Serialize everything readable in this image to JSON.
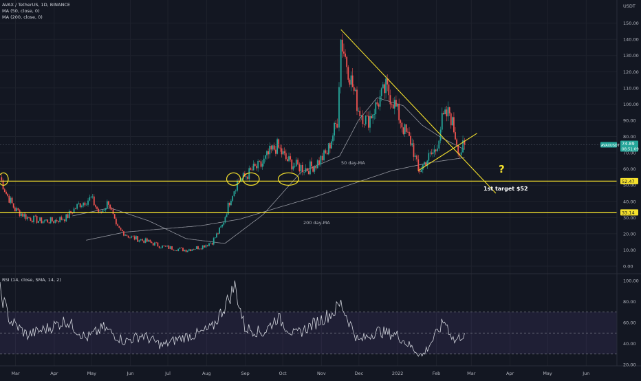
{
  "header": {
    "symbol_line": "AVAX / TetherUS, 1D, BINANCE",
    "ma50_label": "MA (50, close, 0)",
    "ma200_label": "MA (200, close, 0)",
    "rsi_label": "RSI (14, close, SMA, 14, 2)"
  },
  "colors": {
    "background": "#131722",
    "grid": "#1e222d",
    "up": "#26a69a",
    "down": "#ef5350",
    "ma": "#9598a1",
    "drawing": "#f5e12d",
    "rsi_line": "#d1d4dc",
    "rsi_band": "#7e57c2",
    "axis_text": "#b2b5be"
  },
  "price_axis": {
    "unit": "USDT",
    "ticks": [
      "150.00",
      "140.00",
      "130.00",
      "120.00",
      "110.00",
      "100.00",
      "90.00",
      "80.00",
      "70.00",
      "60.00",
      "50.00",
      "40.00",
      "30.00",
      "20.00",
      "10.00",
      "0.00"
    ]
  },
  "rsi_axis": {
    "ticks": [
      "100.00",
      "80.00",
      "60.00",
      "40.00",
      "20.00"
    ]
  },
  "time_axis": {
    "ticks": [
      "Mar",
      "Apr",
      "May",
      "Jun",
      "Jul",
      "Aug",
      "Sep",
      "Oct",
      "Nov",
      "Dec",
      "2022",
      "Feb",
      "Mar",
      "Apr",
      "May",
      "Jun"
    ]
  },
  "badges": {
    "target_level": "52.47",
    "support_level": "33.14",
    "last_price": "74.89",
    "countdown": "08:51:09",
    "pair_tag": "AVAXUSDT"
  },
  "annotations": {
    "ma50": "50 day-MA",
    "ma200": "200 day-MA",
    "target": "1st target $52",
    "question": "?"
  },
  "chart_data": {
    "type": "line",
    "title": "AVAX / TetherUS, 1D, BINANCE",
    "y_unit": "USDT",
    "ylim": [
      0,
      155
    ],
    "grid": true,
    "x_range": [
      "2021-02-21",
      "2022-06-30"
    ],
    "horizontal_levels": [
      52.47,
      33.14
    ],
    "last_price": 74.89,
    "price_close_series": {
      "name": "AVAXUSDT close (approx.)",
      "x": [
        "2021-02-21",
        "2021-02-26",
        "2021-03-05",
        "2021-03-15",
        "2021-03-25",
        "2021-04-05",
        "2021-04-15",
        "2021-04-25",
        "2021-05-05",
        "2021-05-12",
        "2021-05-19",
        "2021-05-25",
        "2021-06-05",
        "2021-06-20",
        "2021-07-01",
        "2021-07-10",
        "2021-07-20",
        "2021-08-01",
        "2021-08-10",
        "2021-08-18",
        "2021-08-25",
        "2021-08-30",
        "2021-09-05",
        "2021-09-12",
        "2021-09-18",
        "2021-09-25",
        "2021-10-01",
        "2021-10-08",
        "2021-10-15",
        "2021-10-25",
        "2021-11-01",
        "2021-11-10",
        "2021-11-18",
        "2021-11-21",
        "2021-11-28",
        "2021-12-05",
        "2021-12-12",
        "2021-12-20",
        "2021-12-27",
        "2022-01-03",
        "2022-01-10",
        "2022-01-17",
        "2022-01-22",
        "2022-01-28",
        "2022-02-05",
        "2022-02-10",
        "2022-02-16",
        "2022-02-24",
        "2022-02-28"
      ],
      "y": [
        55,
        45,
        35,
        30,
        28,
        28,
        30,
        38,
        42,
        32,
        40,
        24,
        18,
        15,
        12,
        11,
        10,
        12,
        15,
        25,
        43,
        52,
        55,
        60,
        62,
        70,
        74,
        66,
        62,
        60,
        63,
        70,
        90,
        140,
        118,
        97,
        89,
        100,
        110,
        100,
        85,
        75,
        58,
        65,
        72,
        90,
        95,
        70,
        74.89
      ]
    },
    "series": [
      {
        "name": "MA (50, close, 0)",
        "x": [
          "2021-04-20",
          "2021-05-20",
          "2021-06-20",
          "2021-07-20",
          "2021-08-20",
          "2021-09-20",
          "2021-10-20",
          "2021-11-20",
          "2021-12-05",
          "2021-12-20",
          "2022-01-10",
          "2022-01-25",
          "2022-02-10",
          "2022-02-28"
        ],
        "y": [
          31,
          36,
          28,
          17,
          14,
          32,
          58,
          68,
          90,
          104,
          99,
          87,
          79,
          72
        ]
      },
      {
        "name": "MA (200, close, 0)",
        "x": [
          "2021-05-01",
          "2021-06-01",
          "2021-07-01",
          "2021-08-01",
          "2021-09-01",
          "2021-10-01",
          "2021-11-01",
          "2021-12-01",
          "2022-01-01",
          "2022-02-01",
          "2022-02-28"
        ],
        "y": [
          16,
          21,
          23,
          25,
          29,
          36,
          43,
          51,
          59,
          64,
          67
        ]
      },
      {
        "name": "RSI (14, close, SMA, 14, 2)",
        "x": [
          "2021-02-21",
          "2021-03-01",
          "2021-03-15",
          "2021-04-01",
          "2021-04-15",
          "2021-05-01",
          "2021-05-15",
          "2021-06-01",
          "2021-06-15",
          "2021-07-01",
          "2021-07-15",
          "2021-08-01",
          "2021-08-10",
          "2021-08-22",
          "2021-08-28",
          "2021-09-05",
          "2021-09-20",
          "2021-10-01",
          "2021-10-15",
          "2021-11-01",
          "2021-11-15",
          "2021-11-21",
          "2021-12-05",
          "2021-12-20",
          "2022-01-05",
          "2022-01-20",
          "2022-01-25",
          "2022-02-05",
          "2022-02-12",
          "2022-02-20",
          "2022-02-28"
        ],
        "y": [
          90,
          62,
          48,
          55,
          62,
          45,
          55,
          42,
          48,
          38,
          45,
          50,
          55,
          80,
          95,
          55,
          50,
          65,
          48,
          60,
          70,
          78,
          42,
          52,
          48,
          33,
          28,
          48,
          62,
          42,
          50
        ]
      }
    ],
    "drawings": {
      "descending_trendline": {
        "x": [
          "2021-11-21",
          "2022-03-25"
        ],
        "y": [
          146,
          45
        ]
      },
      "ascending_trendline": {
        "x": [
          "2022-01-22",
          "2022-03-10"
        ],
        "y": [
          59,
          82
        ]
      },
      "rsi_band": [
        30,
        70
      ]
    },
    "rsi_ylim": [
      20,
      100
    ]
  }
}
